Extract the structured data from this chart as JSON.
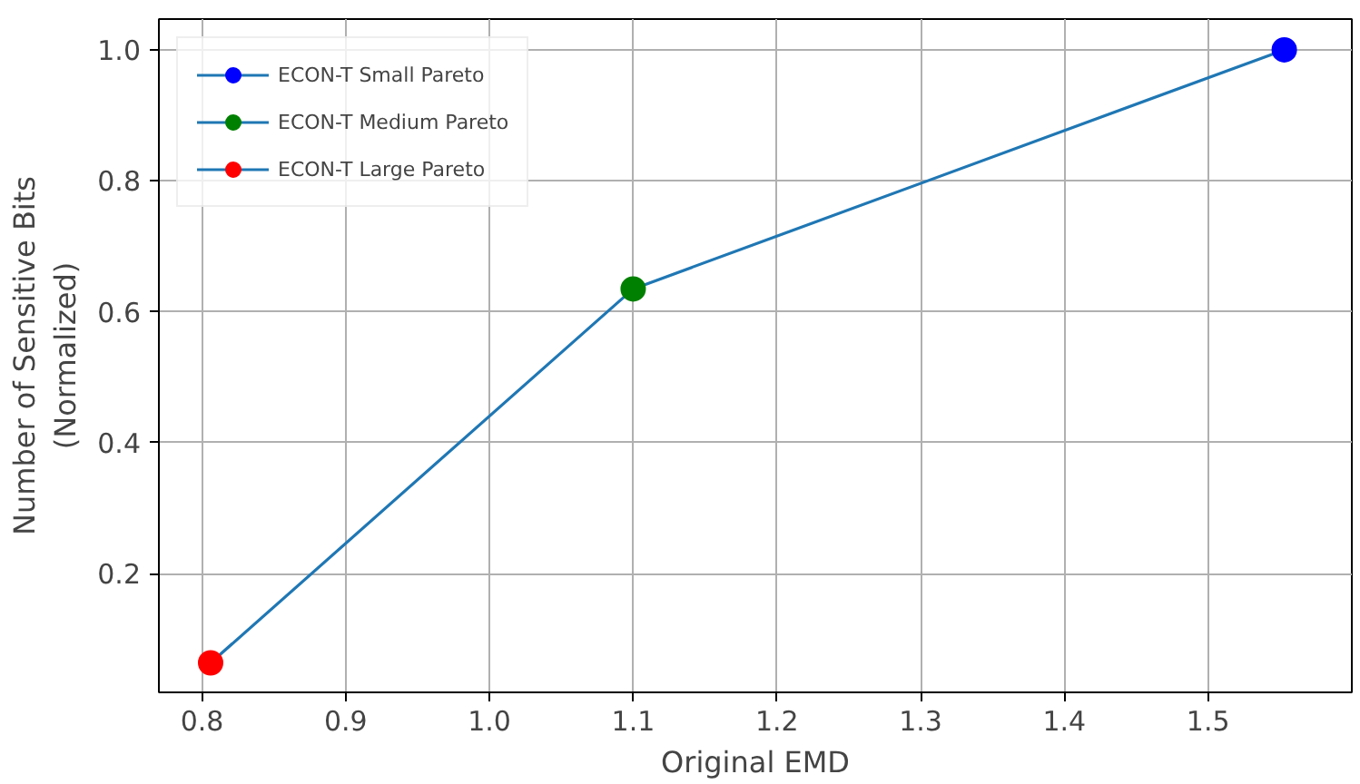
{
  "chart_data": {
    "type": "line",
    "xlabel": "Original EMD",
    "ylabel": "Number of Sensitive Bits\n(Normalized)",
    "xlim": [
      0.77,
      1.6
    ],
    "ylim": [
      0.019,
      1.047
    ],
    "xticks": [
      0.8,
      0.9,
      {
        "value": 1.0,
        "label": "1.0"
      },
      1.1,
      1.2,
      1.3,
      1.4,
      1.5
    ],
    "yticks": [
      0.2,
      0.4,
      0.6,
      0.8,
      {
        "value": 1.0,
        "label": "1.0"
      }
    ],
    "grid": true,
    "legend": "top left",
    "line_style": "solid",
    "series": [
      {
        "color": "#1f77b4",
        "x": [
          0.806,
          1.1,
          1.553
        ],
        "values": [
          0.064,
          0.635,
          1.0
        ]
      },
      {
        "type": "scatter",
        "name": "ECON-T Small Pareto",
        "marker": "circle",
        "color": "#0000ff",
        "x": [
          1.553
        ],
        "values": [
          1.0
        ]
      },
      {
        "type": "scatter",
        "name": "ECON-T Medium Pareto",
        "marker": "circle",
        "color": "#008000",
        "x": [
          1.1
        ],
        "values": [
          0.635
        ]
      },
      {
        "type": "scatter",
        "name": "ECON-T Large Pareto",
        "marker": "circle",
        "color": "#ff0000",
        "x": [
          0.806
        ],
        "values": [
          0.064
        ]
      }
    ]
  }
}
